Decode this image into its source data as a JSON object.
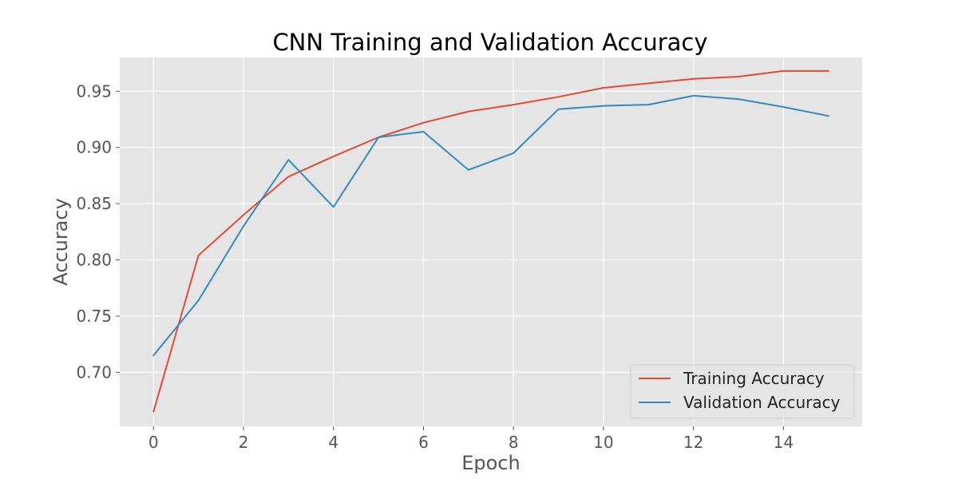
{
  "chart_data": {
    "type": "line",
    "title": "CNN Training and Validation Accuracy",
    "xlabel": "Epoch",
    "ylabel": "Accuracy",
    "x": [
      0,
      1,
      2,
      3,
      4,
      5,
      6,
      7,
      8,
      9,
      10,
      11,
      12,
      13,
      14,
      15
    ],
    "xlim": [
      -0.75,
      15.75
    ],
    "ylim": [
      0.652,
      0.98
    ],
    "xticks": [
      0,
      2,
      4,
      6,
      8,
      10,
      12,
      14
    ],
    "xtick_labels": [
      "0",
      "2",
      "4",
      "6",
      "8",
      "10",
      "12",
      "14"
    ],
    "yticks": [
      0.7,
      0.75,
      0.8,
      0.85,
      0.9,
      0.95
    ],
    "ytick_labels": [
      "0.70",
      "0.75",
      "0.80",
      "0.85",
      "0.90",
      "0.95"
    ],
    "grid": true,
    "legend_position": "lower-right",
    "background_color": "#e5e5e5",
    "grid_color": "#ffffff",
    "series": [
      {
        "name": "Training Accuracy",
        "color": "#e24a33",
        "values": [
          0.665,
          0.804,
          0.84,
          0.874,
          0.892,
          0.909,
          0.922,
          0.932,
          0.938,
          0.945,
          0.953,
          0.957,
          0.961,
          0.963,
          0.968,
          0.968
        ]
      },
      {
        "name": "Validation Accuracy",
        "color": "#348abd",
        "values": [
          0.715,
          0.764,
          0.83,
          0.889,
          0.847,
          0.909,
          0.914,
          0.88,
          0.895,
          0.934,
          0.937,
          0.938,
          0.946,
          0.943,
          0.936,
          0.928
        ]
      }
    ]
  }
}
